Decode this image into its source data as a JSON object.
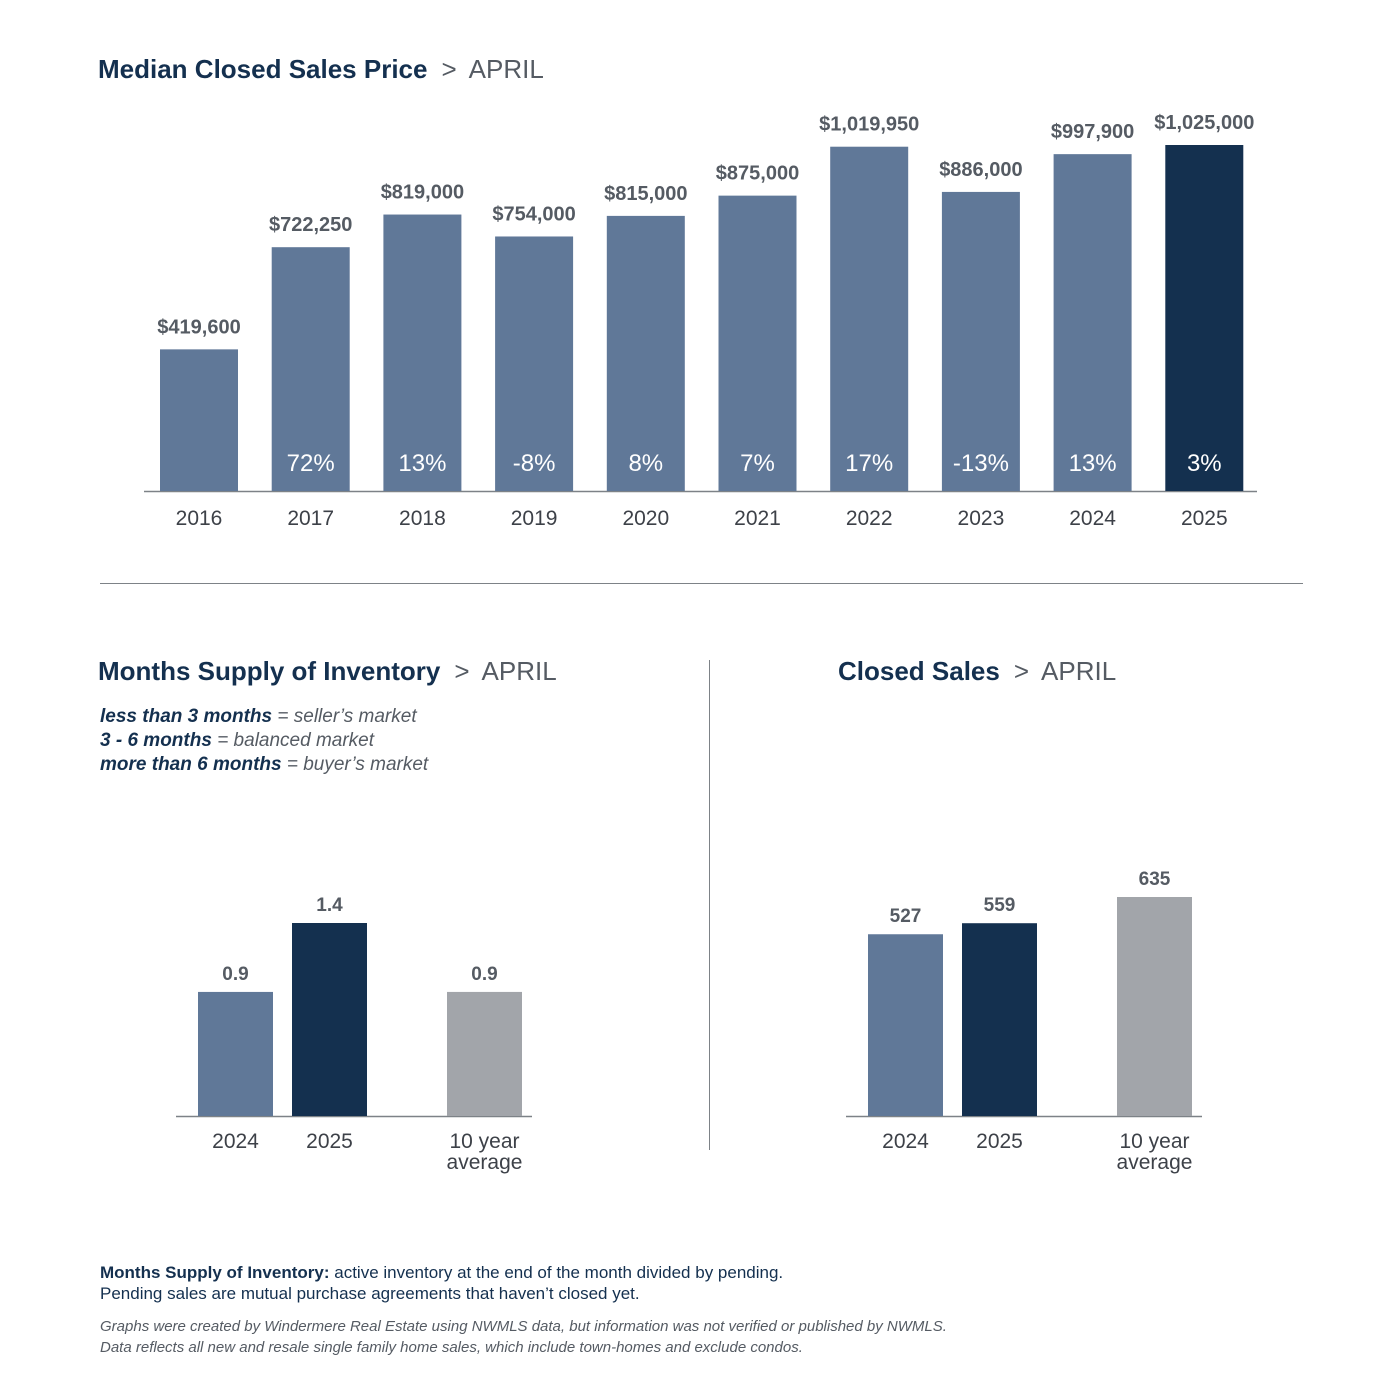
{
  "colors": {
    "navy": "#14304f",
    "slate": "#607898",
    "gray": "#a2a5aa",
    "text_gray": "#555b63",
    "axis": "#7d8287"
  },
  "sections": {
    "median": {
      "title": "Median Closed Sales Price",
      "separator": ">",
      "month": "APRIL"
    },
    "supply": {
      "title": "Months Supply of Inventory",
      "separator": ">",
      "month": "APRIL"
    },
    "closed": {
      "title": "Closed Sales",
      "separator": ">",
      "month": "APRIL"
    }
  },
  "legend": [
    {
      "term": "less than 3 months",
      "desc": "= seller’s market"
    },
    {
      "term": "3 - 6 months",
      "desc": "= balanced market"
    },
    {
      "term": "more than 6 months",
      "desc": "= buyer’s market"
    }
  ],
  "footer": {
    "definition_term": "Months Supply of Inventory:",
    "definition_text": "active inventory at the end of the month divided by pending.",
    "definition_line2": "Pending sales are mutual purchase agreements that haven’t closed yet.",
    "note_line1": "Graphs were created by Windermere Real Estate using NWMLS data, but information was not verified or published by NWMLS.",
    "note_line2": "Data reflects all new and resale single family home sales, which include town-homes and exclude condos."
  },
  "chart_data": [
    {
      "type": "bar",
      "categories": [
        "2016",
        "2017",
        "2018",
        "2019",
        "2020",
        "2021",
        "2022",
        "2023",
        "2024",
        "2025"
      ],
      "values": [
        419600,
        722250,
        819000,
        754000,
        815000,
        875000,
        1019950,
        886000,
        997900,
        1025000
      ],
      "value_labels": [
        "$419,600",
        "$722,250",
        "$819,000",
        "$754,000",
        "$815,000",
        "$875,000",
        "$1,019,950",
        "$886,000",
        "$997,900",
        "$1,025,000"
      ],
      "change_labels": [
        "",
        "72%",
        "13%",
        "-8%",
        "8%",
        "7%",
        "17%",
        "-13%",
        "13%",
        "3%"
      ],
      "highlight_index": 9,
      "ylim": [
        0,
        1100000
      ],
      "grid": false
    },
    {
      "type": "bar",
      "categories": [
        "2024",
        "2025",
        "10 year average"
      ],
      "values": [
        0.9,
        1.4,
        0.9
      ],
      "value_labels": [
        "0.9",
        "1.4",
        "0.9"
      ],
      "bar_colors": [
        "slate",
        "navy",
        "gray"
      ],
      "ylim": [
        0,
        1.5
      ],
      "grid": false
    },
    {
      "type": "bar",
      "categories": [
        "2024",
        "2025",
        "10 year average"
      ],
      "values": [
        527,
        559,
        635
      ],
      "value_labels": [
        "527",
        "559",
        "635"
      ],
      "bar_colors": [
        "slate",
        "navy",
        "gray"
      ],
      "ylim": [
        0,
        700
      ],
      "grid": false
    }
  ]
}
